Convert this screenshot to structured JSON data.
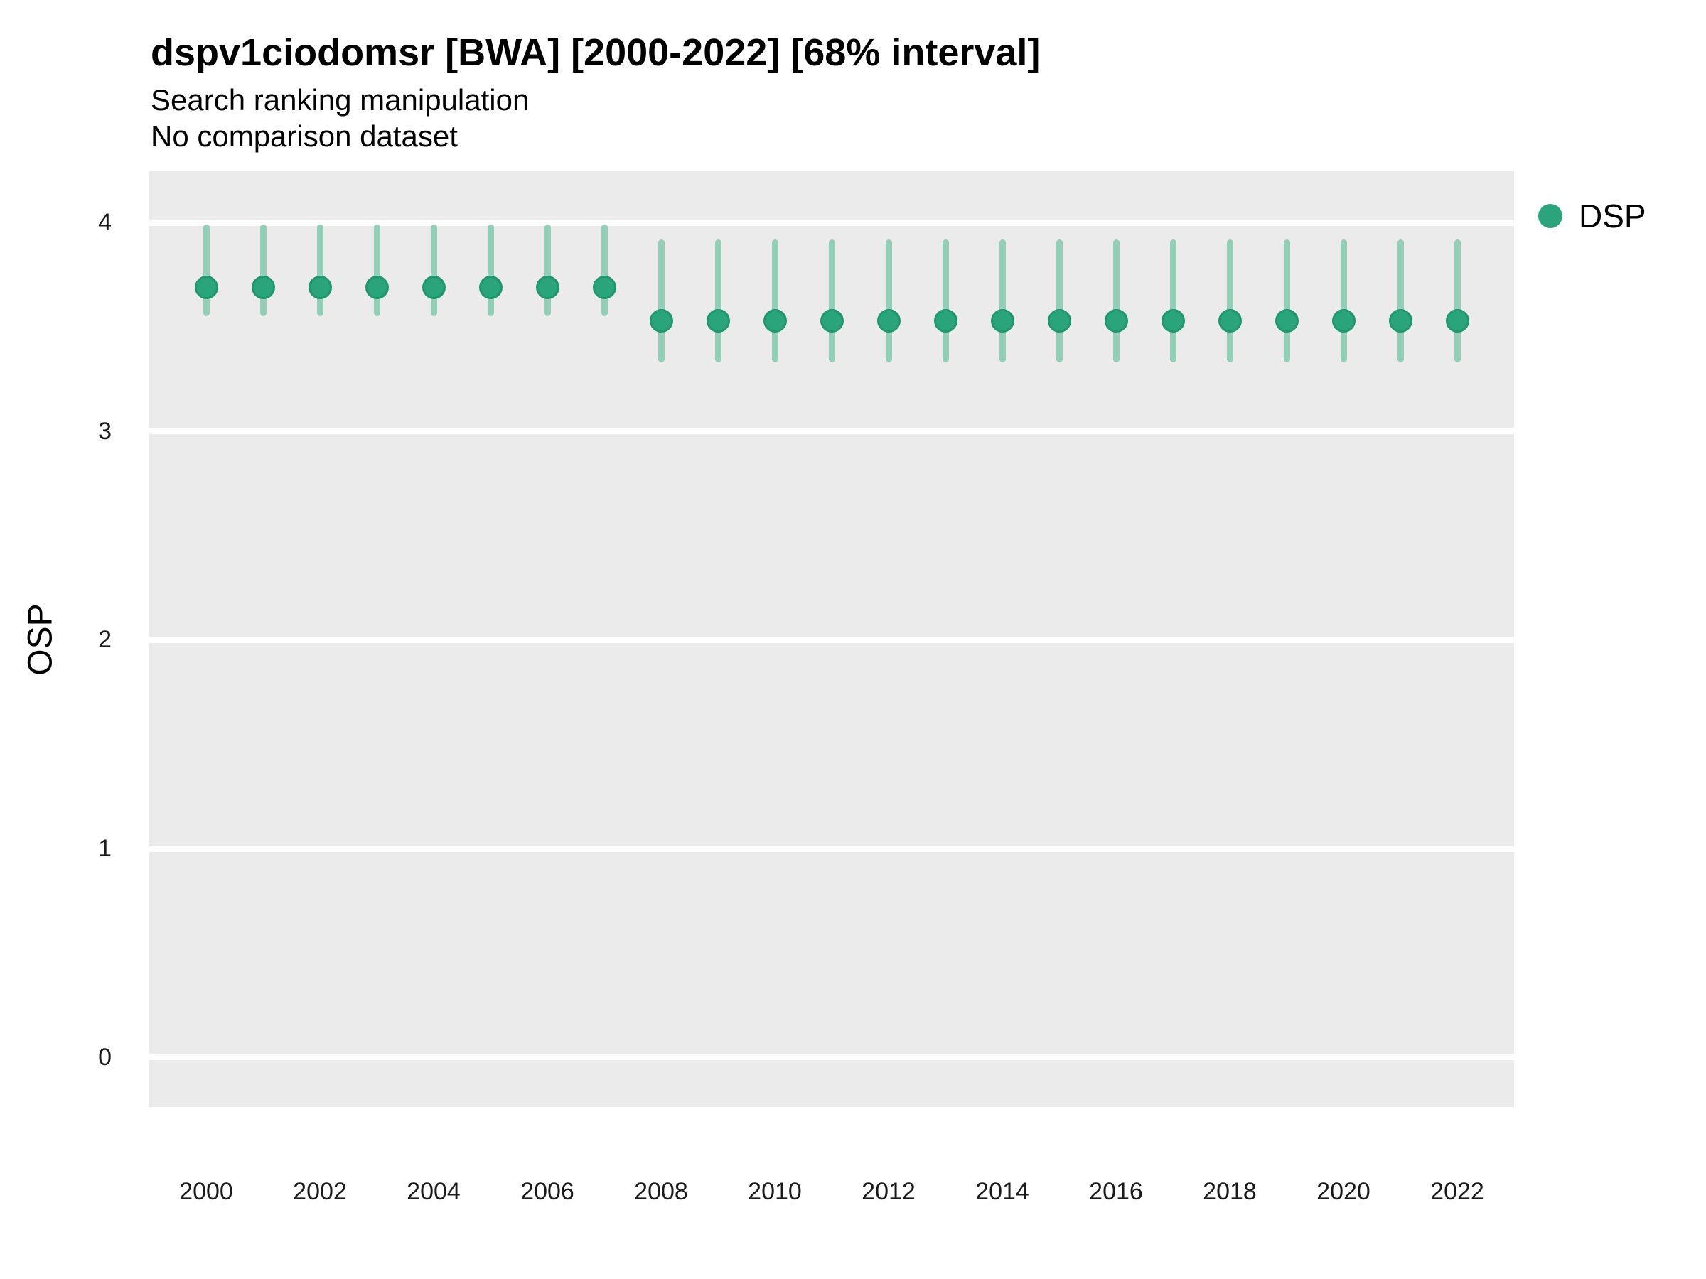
{
  "header": {
    "title": "dspv1ciodomsr [BWA] [2000-2022] [68% interval]",
    "subtitle": "Search ranking manipulation",
    "note": "No comparison dataset"
  },
  "colors": {
    "point_fill": "#2aa47b",
    "point_border": "#1f9870",
    "interval_bar": "#93ceb7",
    "panel_background": "#ebebeb",
    "gridline": "#ffffff"
  },
  "chart_data": {
    "type": "pointrange",
    "title": "dspv1ciodomsr [BWA] [2000-2022] [68% interval]",
    "subtitle": "Search ranking manipulation",
    "comparison_note": "No comparison dataset",
    "xlabel": "",
    "ylabel": "OSP",
    "legend": {
      "label": "DSP",
      "position": "right-top"
    },
    "grid": "major-horizontal-only",
    "x_domain": [
      1999.0,
      2023.0
    ],
    "y_domain": [
      -0.24,
      4.25
    ],
    "x_ticks": [
      2000,
      2002,
      2004,
      2006,
      2008,
      2010,
      2012,
      2014,
      2016,
      2018,
      2020,
      2022
    ],
    "y_ticks": [
      0,
      1,
      2,
      3,
      4
    ],
    "interval_label": "68% interval",
    "series": [
      {
        "name": "DSP",
        "points": [
          {
            "x": 2000,
            "y": 3.69,
            "lo": 3.55,
            "hi": 3.99
          },
          {
            "x": 2001,
            "y": 3.69,
            "lo": 3.55,
            "hi": 3.99
          },
          {
            "x": 2002,
            "y": 3.69,
            "lo": 3.55,
            "hi": 3.99
          },
          {
            "x": 2003,
            "y": 3.69,
            "lo": 3.55,
            "hi": 3.99
          },
          {
            "x": 2004,
            "y": 3.69,
            "lo": 3.55,
            "hi": 3.99
          },
          {
            "x": 2005,
            "y": 3.69,
            "lo": 3.55,
            "hi": 3.99
          },
          {
            "x": 2006,
            "y": 3.69,
            "lo": 3.55,
            "hi": 3.99
          },
          {
            "x": 2007,
            "y": 3.69,
            "lo": 3.55,
            "hi": 3.99
          },
          {
            "x": 2008,
            "y": 3.53,
            "lo": 3.33,
            "hi": 3.92
          },
          {
            "x": 2009,
            "y": 3.53,
            "lo": 3.33,
            "hi": 3.92
          },
          {
            "x": 2010,
            "y": 3.53,
            "lo": 3.33,
            "hi": 3.92
          },
          {
            "x": 2011,
            "y": 3.53,
            "lo": 3.33,
            "hi": 3.92
          },
          {
            "x": 2012,
            "y": 3.53,
            "lo": 3.33,
            "hi": 3.92
          },
          {
            "x": 2013,
            "y": 3.53,
            "lo": 3.33,
            "hi": 3.92
          },
          {
            "x": 2014,
            "y": 3.53,
            "lo": 3.33,
            "hi": 3.92
          },
          {
            "x": 2015,
            "y": 3.53,
            "lo": 3.33,
            "hi": 3.92
          },
          {
            "x": 2016,
            "y": 3.53,
            "lo": 3.33,
            "hi": 3.92
          },
          {
            "x": 2017,
            "y": 3.53,
            "lo": 3.33,
            "hi": 3.92
          },
          {
            "x": 2018,
            "y": 3.53,
            "lo": 3.33,
            "hi": 3.92
          },
          {
            "x": 2019,
            "y": 3.53,
            "lo": 3.33,
            "hi": 3.92
          },
          {
            "x": 2020,
            "y": 3.53,
            "lo": 3.33,
            "hi": 3.92
          },
          {
            "x": 2021,
            "y": 3.53,
            "lo": 3.33,
            "hi": 3.92
          },
          {
            "x": 2022,
            "y": 3.53,
            "lo": 3.33,
            "hi": 3.92
          }
        ]
      }
    ]
  }
}
